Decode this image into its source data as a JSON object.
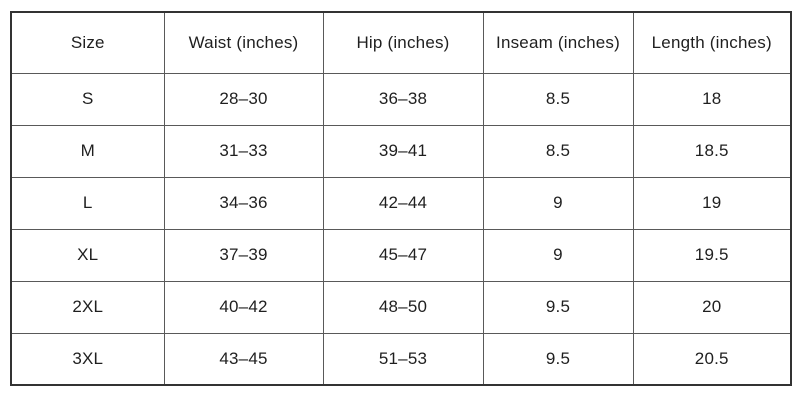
{
  "colors": {
    "background": "#ffffff",
    "outer_border": "#333333",
    "inner_border": "#595959",
    "text": "#1f1f1f"
  },
  "table": {
    "columns": [
      "Size",
      "Waist (inches)",
      "Hip (inches)",
      "Inseam (inches)",
      "Length (inches)"
    ],
    "rows": [
      {
        "size": "S",
        "waist": "28–30",
        "hip": "36–38",
        "inseam": "8.5",
        "length": "18"
      },
      {
        "size": "M",
        "waist": "31–33",
        "hip": "39–41",
        "inseam": "8.5",
        "length": "18.5"
      },
      {
        "size": "L",
        "waist": "34–36",
        "hip": "42–44",
        "inseam": "9",
        "length": "19"
      },
      {
        "size": "XL",
        "waist": "37–39",
        "hip": "45–47",
        "inseam": "9",
        "length": "19.5"
      },
      {
        "size": "2XL",
        "waist": "40–42",
        "hip": "48–50",
        "inseam": "9.5",
        "length": "20"
      },
      {
        "size": "3XL",
        "waist": "43–45",
        "hip": "51–53",
        "inseam": "9.5",
        "length": "20.5"
      }
    ]
  },
  "chart_data": {
    "type": "table",
    "columns": [
      "Size",
      "Waist (inches)",
      "Hip (inches)",
      "Inseam (inches)",
      "Length (inches)"
    ],
    "rows": [
      [
        "S",
        "28–30",
        "36–38",
        8.5,
        18
      ],
      [
        "M",
        "31–33",
        "39–41",
        8.5,
        18.5
      ],
      [
        "L",
        "34–36",
        "42–44",
        9,
        19
      ],
      [
        "XL",
        "37–39",
        "45–47",
        9,
        19.5
      ],
      [
        "2XL",
        "40–42",
        "48–50",
        9.5,
        20
      ],
      [
        "3XL",
        "43–45",
        "51–53",
        9.5,
        20.5
      ]
    ]
  }
}
